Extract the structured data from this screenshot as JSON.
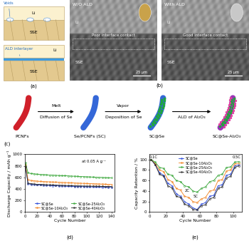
{
  "diagram": {
    "a": {
      "panel": "(a)",
      "without": {
        "callout": "Voids",
        "top": "Li",
        "bottom": "SSE"
      },
      "with": {
        "callout": "ALD interlayer",
        "top": "Li",
        "bottom": "SSE"
      }
    },
    "b": {
      "panel": "(b)",
      "images": [
        {
          "title": "W/O ALD",
          "top": "Li",
          "box": "Poor interface contact",
          "bottom": "SSE",
          "scale": "25 μm"
        },
        {
          "title": "With ALD",
          "top": "Li",
          "box": "Good interface contact",
          "bottom": "SSE",
          "scale": "25 μm"
        }
      ]
    },
    "c": {
      "panel": "(c)",
      "stages": [
        "PCNFs",
        "Se/PCNFs (SC)",
        "SC@Se",
        "SC@Se-Al₂O₃"
      ],
      "steps": [
        {
          "above": "Melt",
          "below": "Diffusion of Se"
        },
        {
          "above": "Vapor",
          "below": "Deposition of Se"
        },
        {
          "below": "ALD of Al₂O₃"
        }
      ]
    }
  },
  "chart_data": [
    {
      "panel": "(d)",
      "type": "line",
      "marker": "o",
      "line_style": "solid",
      "xlabel": "Cycle Number",
      "ylabel": "Discharge Capacity / mAh g⁻¹",
      "x": [
        1,
        5,
        10,
        15,
        20,
        25,
        30,
        35,
        40,
        45,
        50,
        55,
        60,
        65,
        70,
        75,
        80,
        85,
        90,
        95,
        100,
        105,
        110,
        115,
        120,
        125,
        130,
        135,
        140
      ],
      "series": [
        {
          "name": "SC@Se",
          "color": "#1f3fd6",
          "values": [
            800,
            490,
            480,
            475,
            470,
            470,
            465,
            460,
            462,
            455,
            458,
            450,
            452,
            448,
            445,
            447,
            442,
            440,
            443,
            438,
            440,
            435,
            437,
            432,
            435,
            430,
            432,
            428,
            430
          ]
        },
        {
          "name": "SC@Se-10Al₂O₃",
          "color": "#f07f1a",
          "values": [
            820,
            560,
            545,
            540,
            535,
            530,
            528,
            525,
            522,
            520,
            518,
            515,
            512,
            510,
            508,
            505,
            503,
            500,
            498,
            496,
            494,
            492,
            490,
            488,
            486,
            484,
            482,
            480,
            478
          ]
        },
        {
          "name": "SC@Se-25Al₂O₃",
          "color": "#2ca02c",
          "values": [
            850,
            680,
            665,
            660,
            655,
            650,
            648,
            645,
            640,
            638,
            635,
            632,
            630,
            628,
            625,
            622,
            620,
            618,
            615,
            612,
            610,
            608,
            605,
            602,
            600,
            598,
            596,
            594,
            592
          ]
        },
        {
          "name": "SC@Se-40Al₂O₃",
          "color": "#222222",
          "values": [
            780,
            500,
            490,
            485,
            480,
            478,
            475,
            472,
            470,
            468,
            466,
            464,
            462,
            460,
            458,
            456,
            455,
            453,
            452,
            450,
            449,
            448,
            447,
            446,
            445,
            444,
            443,
            442,
            441
          ]
        }
      ],
      "xlim": [
        0,
        145
      ],
      "xticks": [
        0,
        20,
        40,
        60,
        80,
        100,
        120,
        140
      ],
      "ylim": [
        0,
        1000
      ],
      "yticks": [
        0,
        200,
        400,
        600,
        800,
        1000
      ],
      "legend": "lower center",
      "annotations": [
        {
          "text": "at 0.05 A g⁻¹",
          "x": 112,
          "y": 880
        }
      ]
    },
    {
      "panel": "(e)",
      "type": "line",
      "marker": "o",
      "line_style": "solid",
      "xlabel": "Cycle Number",
      "ylabel": "Capacity Retention / %",
      "x": [
        2,
        7,
        12,
        17,
        22,
        27,
        32,
        37,
        42,
        47,
        52,
        57,
        62,
        67,
        72,
        77,
        82,
        87,
        92,
        97,
        102,
        107
      ],
      "series": [
        {
          "name": "SC@Se",
          "color": "#1f3fd6",
          "values": [
            100,
            90,
            75,
            70,
            55,
            50,
            35,
            30,
            20,
            15,
            8,
            5,
            15,
            18,
            30,
            32,
            50,
            52,
            70,
            72,
            88,
            90
          ]
        },
        {
          "name": "SC@Se-10Al₂O₃",
          "color": "#f07f1a",
          "values": [
            100,
            92,
            80,
            77,
            62,
            58,
            45,
            42,
            30,
            28,
            20,
            18,
            25,
            28,
            40,
            42,
            60,
            62,
            78,
            80,
            92,
            93
          ]
        },
        {
          "name": "SC@Se-25Al₂O₃",
          "color": "#2ca02c",
          "values": [
            100,
            95,
            85,
            83,
            72,
            70,
            60,
            58,
            50,
            48,
            40,
            38,
            45,
            48,
            58,
            60,
            70,
            72,
            85,
            86,
            95,
            96
          ]
        },
        {
          "name": "SC@Se-40Al₂O₃",
          "color": "#222222",
          "values": [
            100,
            90,
            72,
            68,
            50,
            46,
            30,
            28,
            15,
            12,
            5,
            4,
            12,
            14,
            25,
            28,
            45,
            48,
            65,
            68,
            85,
            88
          ]
        }
      ],
      "xlim": [
        0,
        110
      ],
      "xticks": [
        0,
        20,
        40,
        60,
        80,
        100
      ],
      "ylim": [
        0,
        110
      ],
      "yticks": [
        0,
        20,
        40,
        60,
        80,
        100
      ],
      "legend": "upper center",
      "annotations": [
        {
          "text": "0.1C",
          "x": 5,
          "y": 104
        },
        {
          "text": "2C",
          "x": 45,
          "y": 40
        },
        {
          "text": "5C",
          "x": 55,
          "y": 30
        },
        {
          "text": "0.5C",
          "x": 104,
          "y": 104
        }
      ]
    }
  ]
}
